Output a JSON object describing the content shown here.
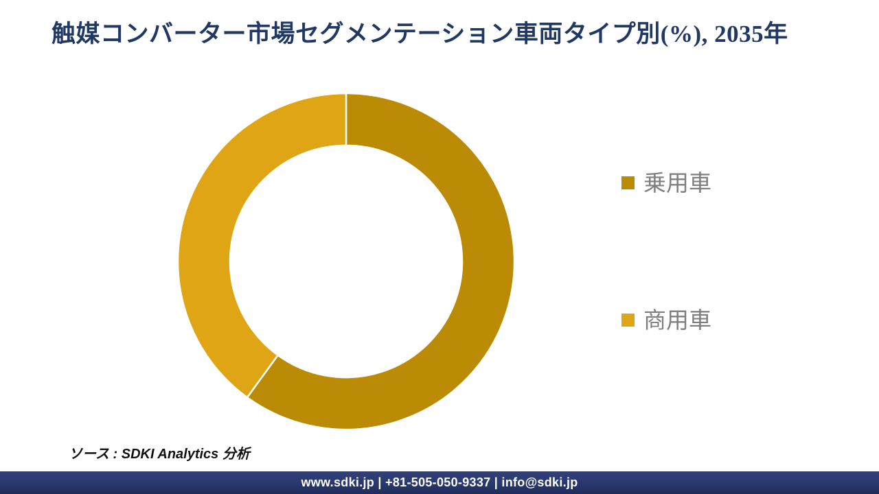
{
  "title": "触媒コンバーター市場セグメンテーション車両タイプ別(%), 2035年",
  "chart_data": {
    "type": "pie",
    "subtype": "donut",
    "title": "触媒コンバーター市場セグメンテーション車両タイプ別(%), 2035年",
    "unit": "%",
    "categories": [
      "乗用車",
      "商用車"
    ],
    "values": [
      60,
      40
    ],
    "colors": [
      "#BB8B06",
      "#DFA514"
    ],
    "separator_color": "#FFFFFF",
    "start_angle_deg": 0,
    "direction": "clockwise",
    "inner_radius_ratio": 0.69,
    "legend_position": "right",
    "data_labels": false
  },
  "legend": {
    "items": [
      {
        "label": "乗用車",
        "color": "#BB8B06"
      },
      {
        "label": "商用車",
        "color": "#DFA514"
      }
    ]
  },
  "source_note": "ソース : SDKI Analytics 分析",
  "footer": {
    "text": "www.sdki.jp | +81-505-050-9337 | info@sdki.jp"
  },
  "theme": {
    "title_color": "#1F3864",
    "legend_text_color": "#7F7F7F",
    "footer_bg": "#2B3A6F",
    "footer_text_color": "#FFFFFF",
    "background": "#FFFFFF"
  }
}
